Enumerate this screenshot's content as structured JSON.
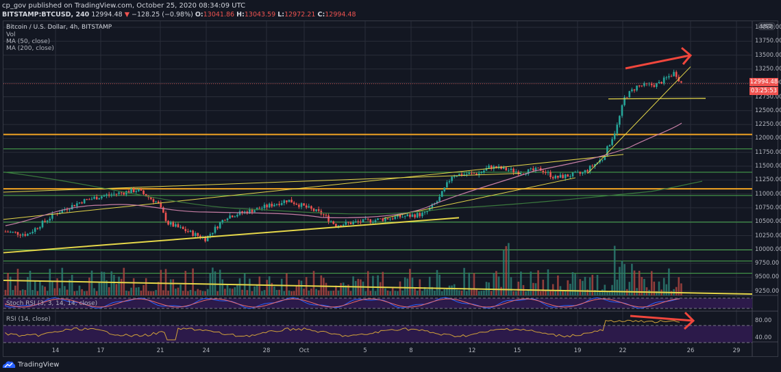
{
  "header": {
    "publish_line": "cp_gov published on TradingView.com, October 25, 2020 08:34:09 UTC",
    "symbol": "BITSTAMP:BTCUSD, 240",
    "last": "12994.48",
    "change_arrow": "▼",
    "change": "−128.25 (−0.98%)",
    "o_label": "O:",
    "o": "13041.86",
    "h_label": "H:",
    "h": "13043.59",
    "l_label": "L:",
    "l": "12972.21",
    "c_label": "C:",
    "c": "12994.48"
  },
  "legend": {
    "title": "Bitcoin / U.S. Dollar, 4h, BITSTAMP",
    "vol": "Vol",
    "ma50": "MA (50, close)",
    "ma200": "MA (200, close)",
    "stoch": "Stoch RSI (3, 3, 14, 14, close)",
    "rsi": "RSI (14, close)"
  },
  "price_axis": {
    "currency": "USD",
    "labels": [
      "14000.00",
      "13750.00",
      "13500.00",
      "13250.00",
      "13000.00",
      "12750.00",
      "12500.00",
      "12250.00",
      "12000.00",
      "11750.00",
      "11500.00",
      "11250.00",
      "11000.00",
      "10750.00",
      "10500.00",
      "10250.00",
      "10000.00",
      "9750.00",
      "9500.00",
      "9250.00"
    ],
    "current_price": "12994.48",
    "countdown": "03:25:53"
  },
  "rsi_axis": {
    "labels": [
      "80.00",
      "40.00"
    ]
  },
  "time_axis": {
    "labels": [
      "14",
      "17",
      "21",
      "24",
      "28",
      "Oct",
      "5",
      "8",
      "12",
      "15",
      "19",
      "22",
      "26",
      "29"
    ]
  },
  "footer": {
    "brand": "TradingView"
  },
  "colors": {
    "background": "#131722",
    "up": "#26a69a",
    "down": "#ef5350",
    "ma50": "#c87fa6",
    "ma200": "#3b7a3e",
    "trendline": "#e6d84a",
    "resistance": "#f5a623",
    "support": "#4caf50",
    "annotation_arrow": "#f0463c"
  },
  "chart_data": {
    "type": "candlestick",
    "title": "Bitcoin / U.S. Dollar, 4h, BITSTAMP",
    "xlabel": "",
    "ylabel": "USD",
    "ylim": [
      9150,
      14050
    ],
    "categories": [
      "Sep 14",
      "Sep 17",
      "Sep 21",
      "Sep 24",
      "Sep 28",
      "Oct 1",
      "Oct 5",
      "Oct 8",
      "Oct 12",
      "Oct 15",
      "Oct 19",
      "Oct 22",
      "Oct 26",
      "Oct 29"
    ],
    "approx_close": [
      10600,
      10950,
      10800,
      10250,
      10750,
      10700,
      10650,
      10650,
      11450,
      11400,
      11500,
      12950,
      12994.48,
      null
    ],
    "last_ohlc": {
      "open": 13041.86,
      "high": 13043.59,
      "low": 12972.21,
      "close": 12994.48,
      "change": -128.25,
      "change_pct": -0.98
    },
    "horizontal_levels": {
      "resistance_orange": [
        12080,
        11100
      ],
      "green": [
        11820,
        11400,
        10980,
        10500,
        10000,
        9800,
        9580
      ]
    },
    "indicators": [
      "Vol",
      "MA (50, close)",
      "MA (200, close)",
      "Stoch RSI (3, 3, 14, 14, close)",
      "RSI (14, close)"
    ],
    "rsi_levels": [
      80,
      40
    ],
    "annotations": [
      "red arrow: higher highs in price",
      "red arrow: lower highs on RSI (bearish divergence)"
    ],
    "grid": true,
    "legend_position": "top-left"
  }
}
